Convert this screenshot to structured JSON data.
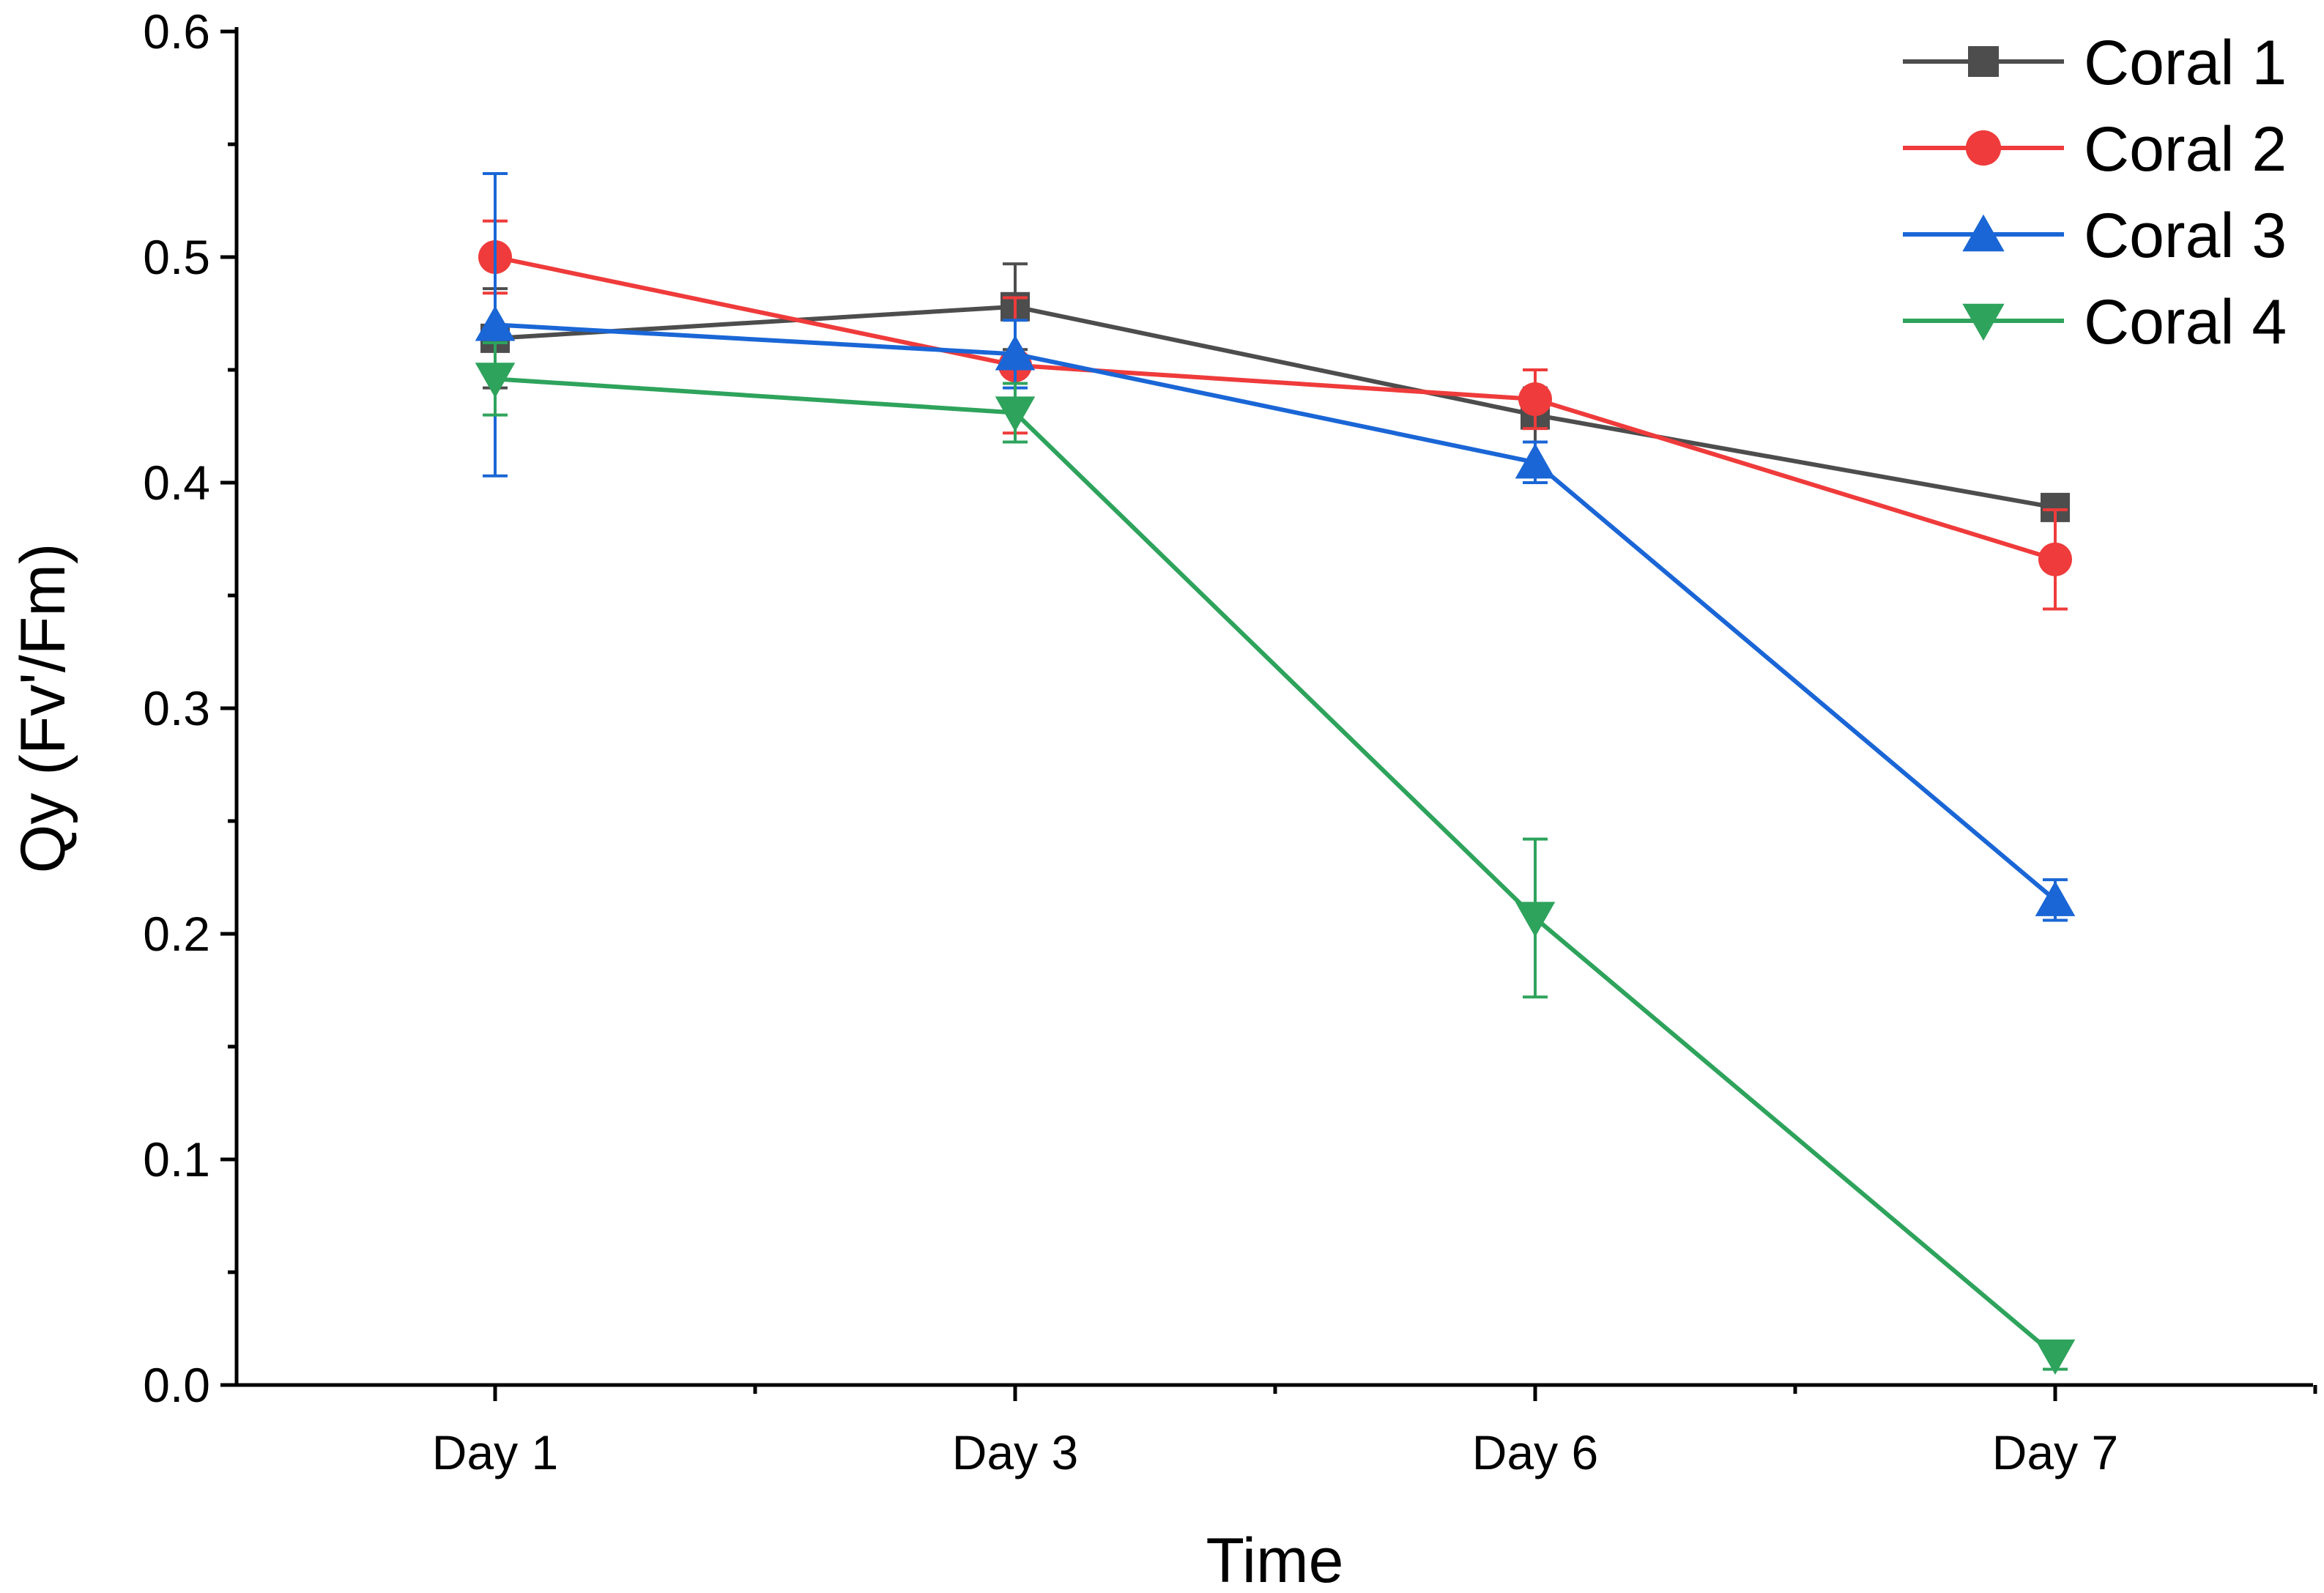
{
  "chart_data": {
    "type": "line",
    "title": "",
    "xlabel": "Time",
    "ylabel": "Qy (Fv'/Fm)",
    "categories": [
      "Day  1",
      "Day  3",
      "Day  6",
      "Day  7"
    ],
    "ylim": [
      0.0,
      0.6
    ],
    "yticks": [
      "0.0",
      "0.1",
      "0.2",
      "0.3",
      "0.4",
      "0.5",
      "0.6"
    ],
    "grid": false,
    "legend_position": "top-right",
    "series": [
      {
        "name": "Coral 1",
        "color": "#4d4d4d",
        "marker": "square",
        "values": [
          0.464,
          0.478,
          0.43,
          0.389
        ],
        "errors": [
          0.022,
          0.019,
          0.012,
          0.004
        ]
      },
      {
        "name": "Coral 2",
        "color": "#ef3b3b",
        "marker": "circle",
        "values": [
          0.5,
          0.452,
          0.437,
          0.366
        ],
        "errors": [
          0.016,
          0.03,
          0.013,
          0.022
        ]
      },
      {
        "name": "Coral 3",
        "color": "#1a66d6",
        "marker": "triangle-up",
        "values": [
          0.47,
          0.457,
          0.409,
          0.215
        ],
        "errors": [
          0.067,
          0.015,
          0.009,
          0.009
        ]
      },
      {
        "name": "Coral 4",
        "color": "#2ea35c",
        "marker": "triangle-down",
        "values": [
          0.446,
          0.431,
          0.207,
          0.013
        ],
        "errors": [
          0.016,
          0.013,
          0.035,
          0.006
        ]
      }
    ]
  }
}
